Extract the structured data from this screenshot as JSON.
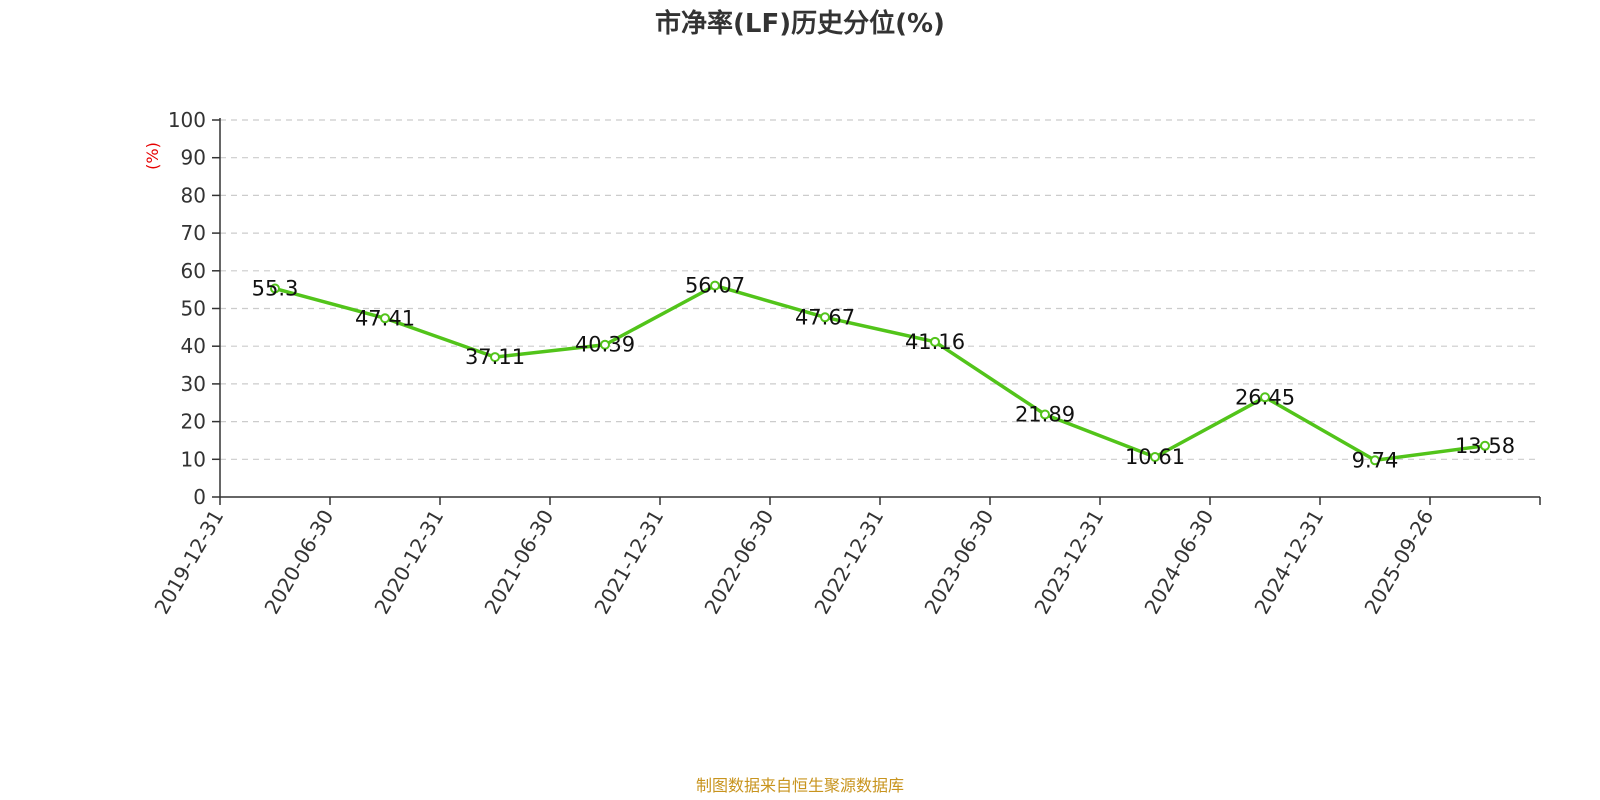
{
  "chart_data": {
    "type": "line",
    "title": "市净率(LF)历史分位(%)",
    "ylabel": "(%)",
    "xlabel": "",
    "ylim": [
      0,
      100
    ],
    "yticks": [
      0,
      10,
      20,
      30,
      40,
      50,
      60,
      70,
      80,
      90,
      100
    ],
    "grid": true,
    "categories": [
      "2019-12-31",
      "2020-06-30",
      "2020-12-31",
      "2021-06-30",
      "2021-12-31",
      "2022-06-30",
      "2022-12-31",
      "2023-06-30",
      "2023-12-31",
      "2024-06-30",
      "2024-12-31",
      "2025-09-26"
    ],
    "series": [
      {
        "values": [
          55.3,
          47.41,
          37.11,
          40.39,
          56.07,
          47.67,
          41.16,
          21.89,
          10.61,
          26.45,
          9.74,
          13.58
        ],
        "labels": [
          "55.3",
          "47.41",
          "37.11",
          "40.39",
          "56.07",
          "47.67",
          "41.16",
          "21.89",
          "10.61",
          "26.45",
          "9.74",
          "13.58"
        ]
      }
    ],
    "colors": {
      "line": "#52c41a",
      "axis": "#333333",
      "grid": "#cccccc",
      "unit": "#e60000",
      "source": "#c8941e"
    }
  },
  "footer": {
    "source": "制图数据来自恒生聚源数据库"
  }
}
